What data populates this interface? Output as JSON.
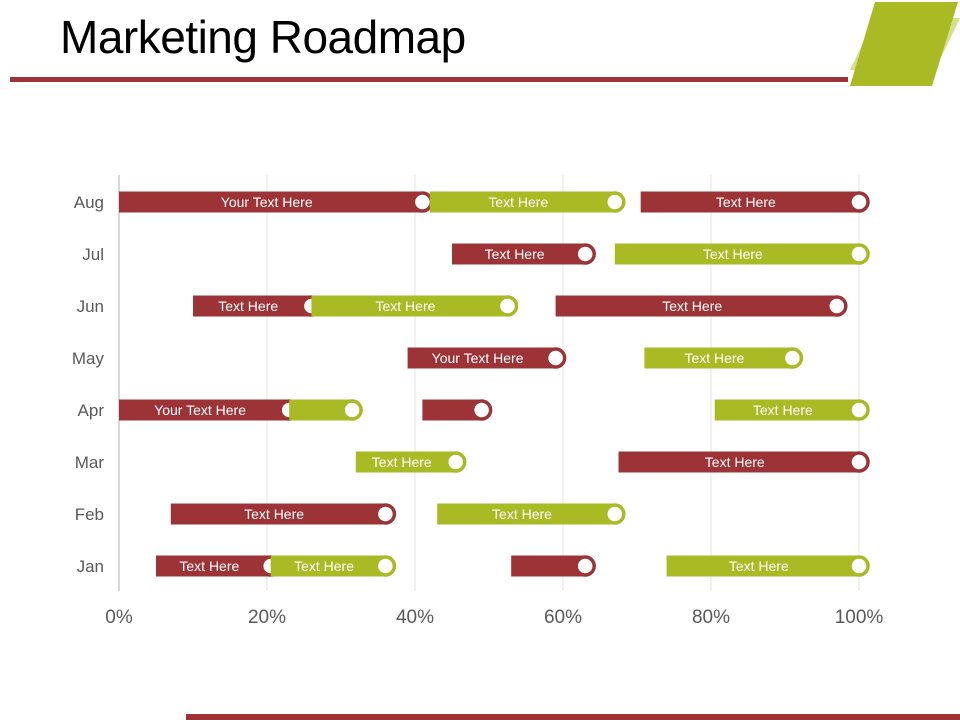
{
  "title": "Marketing Roadmap",
  "colors": {
    "red": "#9b3337",
    "green": "#a9ba24",
    "green_light": "#d4df8a",
    "axis": "#bfbfbf",
    "grid": "#e3e3e3",
    "tick_text": "#595959"
  },
  "chart_data": {
    "type": "bar",
    "orientation": "horizontal-floating",
    "categories": [
      "Jan",
      "Feb",
      "Mar",
      "Apr",
      "May",
      "Jun",
      "Jul",
      "Aug"
    ],
    "x_ticks": [
      "0%",
      "20%",
      "40%",
      "60%",
      "80%",
      "100%"
    ],
    "xlim": [
      0,
      100
    ],
    "grid": true,
    "bars": [
      {
        "category": "Aug",
        "start": 0,
        "end": 41,
        "color": "red",
        "label": "Your Text Here"
      },
      {
        "category": "Aug",
        "start": 42,
        "end": 67,
        "color": "green",
        "label": "Text Here"
      },
      {
        "category": "Aug",
        "start": 70.5,
        "end": 100,
        "color": "red",
        "label": "Text Here"
      },
      {
        "category": "Jul",
        "start": 45,
        "end": 63,
        "color": "red",
        "label": "Text Here"
      },
      {
        "category": "Jul",
        "start": 67,
        "end": 100,
        "color": "green",
        "label": "Text Here"
      },
      {
        "category": "Jun",
        "start": 10,
        "end": 26,
        "color": "red",
        "label": "Text Here"
      },
      {
        "category": "Jun",
        "start": 26,
        "end": 52.5,
        "color": "green",
        "label": "Text Here"
      },
      {
        "category": "Jun",
        "start": 59,
        "end": 97,
        "color": "red",
        "label": "Text Here"
      },
      {
        "category": "May",
        "start": 39,
        "end": 59,
        "color": "red",
        "label": "Your Text Here"
      },
      {
        "category": "May",
        "start": 71,
        "end": 91,
        "color": "green",
        "label": "Text Here"
      },
      {
        "category": "Apr",
        "start": 0,
        "end": 23,
        "color": "red",
        "label": "Your Text Here"
      },
      {
        "category": "Apr",
        "start": 23,
        "end": 31.5,
        "color": "green",
        "label": ""
      },
      {
        "category": "Apr",
        "start": 41,
        "end": 49,
        "color": "red",
        "label": ""
      },
      {
        "category": "Apr",
        "start": 80.5,
        "end": 100,
        "color": "green",
        "label": "Text Here"
      },
      {
        "category": "Mar",
        "start": 32,
        "end": 45.5,
        "color": "green",
        "label": "Text Here"
      },
      {
        "category": "Mar",
        "start": 67.5,
        "end": 100,
        "color": "red",
        "label": "Text Here"
      },
      {
        "category": "Feb",
        "start": 7,
        "end": 36,
        "color": "red",
        "label": "Text Here"
      },
      {
        "category": "Feb",
        "start": 43,
        "end": 67,
        "color": "green",
        "label": "Text Here"
      },
      {
        "category": "Jan",
        "start": 5,
        "end": 20.5,
        "color": "red",
        "label": "Text Here"
      },
      {
        "category": "Jan",
        "start": 20.5,
        "end": 36,
        "color": "green",
        "label": "Text Here"
      },
      {
        "category": "Jan",
        "start": 53,
        "end": 63,
        "color": "red",
        "label": ""
      },
      {
        "category": "Jan",
        "start": 74,
        "end": 100,
        "color": "green",
        "label": "Text Here"
      }
    ]
  }
}
